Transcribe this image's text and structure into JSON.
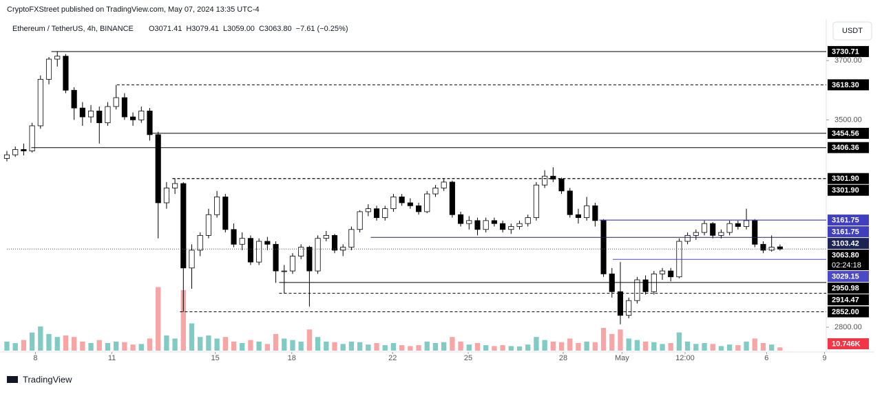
{
  "header": {
    "published": "CryptoFXStreet published on TradingView.com, May 07, 2024 13:35 UTC-4",
    "footer": "TradingView"
  },
  "chart_data": {
    "type": "candlestick",
    "title": "Ethereum / TetherUS, 4h, BINANCE",
    "ohlc_text": [
      "O3071.41",
      "H3079.41",
      "L3059.00",
      "C3063.80",
      "−7.61 (−0.25%)"
    ],
    "currency": "USDT",
    "up_color": "#ffffff",
    "down_color": "#000000",
    "vol_up_color": "#80cbc4",
    "vol_down_color": "#f7a5a5",
    "open": [
      3370,
      3382,
      3400,
      3395,
      3480,
      3637,
      3705,
      3715,
      3600,
      3540,
      3510,
      3530,
      3490,
      3545,
      3575,
      3510,
      3500,
      3530,
      3450,
      3220,
      3270,
      3285,
      3000,
      3060,
      3110,
      3180,
      3240,
      3130,
      3080,
      3100,
      3020,
      3090,
      3080,
      2990,
      2990,
      3040,
      3070,
      2990,
      3100,
      3110,
      3060,
      3070,
      3130,
      3190,
      3200,
      3170,
      3200,
      3240,
      3220,
      3210,
      3190,
      3250,
      3270,
      3290,
      3180,
      3150,
      3160,
      3130,
      3160,
      3150,
      3130,
      3140,
      3150,
      3170,
      3280,
      3310,
      3300,
      3260,
      3180,
      3170,
      3210,
      3160,
      2980,
      2920,
      2840,
      2890,
      2960,
      2920,
      2980,
      2990,
      2970,
      3090,
      3110,
      3120,
      3150,
      3110,
      3120,
      3150,
      3140,
      3160,
      3080,
      3060,
      3071.41
    ],
    "high": [
      3395,
      3410,
      3420,
      3490,
      3650,
      3712,
      3731,
      3722,
      3610,
      3560,
      3550,
      3545,
      3560,
      3618,
      3590,
      3525,
      3545,
      3540,
      3460,
      3290,
      3301,
      3290,
      3080,
      3120,
      3200,
      3260,
      3250,
      3150,
      3120,
      3110,
      3100,
      3105,
      3090,
      3010,
      3050,
      3080,
      3075,
      3110,
      3125,
      3115,
      3080,
      3140,
      3195,
      3215,
      3210,
      3210,
      3250,
      3250,
      3235,
      3220,
      3260,
      3280,
      3300,
      3295,
      3190,
      3175,
      3170,
      3170,
      3170,
      3160,
      3150,
      3160,
      3180,
      3290,
      3330,
      3340,
      3305,
      3270,
      3200,
      3240,
      3220,
      3165,
      3000,
      3020,
      2900,
      2970,
      2975,
      2990,
      3000,
      3000,
      3100,
      3120,
      3130,
      3160,
      3155,
      3130,
      3160,
      3160,
      3200,
      3165,
      3090,
      3110,
      3079.41
    ],
    "low": [
      3360,
      3375,
      3380,
      3390,
      3470,
      3620,
      3680,
      3590,
      3500,
      3480,
      3490,
      3420,
      3480,
      3535,
      3500,
      3480,
      3490,
      3430,
      3100,
      3200,
      3250,
      2852,
      2930,
      3040,
      3100,
      3170,
      3120,
      3070,
      3060,
      3010,
      3010,
      3060,
      2950,
      2914,
      2980,
      3030,
      2870,
      2980,
      3090,
      3050,
      3040,
      3060,
      3120,
      3175,
      3160,
      3160,
      3190,
      3210,
      3200,
      3180,
      3185,
      3240,
      3260,
      3170,
      3140,
      3130,
      3110,
      3120,
      3140,
      3120,
      3115,
      3130,
      3140,
      3160,
      3270,
      3290,
      3250,
      3170,
      3150,
      3160,
      3140,
      2970,
      2900,
      2810,
      2830,
      2880,
      2910,
      2910,
      2960,
      2955,
      2965,
      3080,
      3095,
      3110,
      3100,
      3100,
      3110,
      3130,
      3130,
      3070,
      3050,
      3055,
      3059
    ],
    "close": [
      3382,
      3400,
      3395,
      3480,
      3637,
      3705,
      3715,
      3600,
      3540,
      3510,
      3530,
      3490,
      3545,
      3575,
      3510,
      3500,
      3530,
      3450,
      3220,
      3270,
      3285,
      3000,
      3060,
      3110,
      3180,
      3240,
      3130,
      3080,
      3100,
      3020,
      3090,
      3080,
      2990,
      2990,
      3040,
      3070,
      2990,
      3100,
      3110,
      3060,
      3070,
      3130,
      3190,
      3200,
      3170,
      3200,
      3240,
      3220,
      3210,
      3190,
      3250,
      3270,
      3290,
      3180,
      3150,
      3160,
      3130,
      3160,
      3150,
      3130,
      3140,
      3150,
      3170,
      3280,
      3310,
      3300,
      3260,
      3180,
      3170,
      3210,
      3160,
      2980,
      2920,
      2840,
      2890,
      2960,
      2920,
      2980,
      2990,
      2970,
      3090,
      3110,
      3120,
      3150,
      3110,
      3120,
      3150,
      3140,
      3160,
      3080,
      3060,
      3070,
      3063.8
    ],
    "volume": [
      30,
      25,
      35,
      60,
      80,
      55,
      45,
      50,
      45,
      30,
      25,
      35,
      25,
      30,
      28,
      20,
      22,
      40,
      210,
      50,
      40,
      200,
      90,
      45,
      50,
      40,
      45,
      30,
      25,
      35,
      30,
      22,
      55,
      40,
      35,
      30,
      70,
      45,
      30,
      28,
      22,
      30,
      28,
      20,
      25,
      18,
      25,
      18,
      15,
      18,
      30,
      25,
      28,
      45,
      30,
      20,
      25,
      18,
      15,
      18,
      15,
      14,
      20,
      45,
      35,
      30,
      28,
      40,
      25,
      30,
      28,
      75,
      55,
      70,
      40,
      35,
      30,
      28,
      22,
      25,
      60,
      30,
      22,
      25,
      22,
      15,
      20,
      18,
      30,
      40,
      25,
      20,
      10.746
    ],
    "volume_label": "10.746K",
    "vlim": [
      0,
      250
    ],
    "xlim": [
      0,
      97.5
    ],
    "xticks": [
      {
        "value": 3.4,
        "label": "8"
      },
      {
        "value": 12.5,
        "label": "11"
      },
      {
        "value": 24.8,
        "label": "15"
      },
      {
        "value": 33.9,
        "label": "18"
      },
      {
        "value": 45.9,
        "label": "22"
      },
      {
        "value": 54.9,
        "label": "25"
      },
      {
        "value": 66.2,
        "label": "28"
      },
      {
        "value": 73.2,
        "label": "May"
      },
      {
        "value": 80.7,
        "label": "12:00"
      },
      {
        "value": 90.4,
        "label": "6"
      },
      {
        "value": 97.3,
        "label": "9"
      }
    ],
    "ylim": [
      2721,
      3777
    ],
    "yticks": [
      {
        "value": 3700,
        "label": "3700.00"
      },
      {
        "value": 3500,
        "label": "3500.00"
      },
      {
        "value": 2800,
        "label": "2800.00"
      }
    ],
    "levels": [
      {
        "value": 3730.71,
        "label": "3730.71",
        "from": 5.3,
        "style": "solid",
        "color": "#000000"
      },
      {
        "value": 3618.3,
        "label": "3618.30",
        "from": 13.1,
        "style": "dashed",
        "color": "#000000"
      },
      {
        "value": 3454.56,
        "label": "3454.56",
        "from": 17,
        "style": "solid",
        "color": "#000000"
      },
      {
        "value": 3406.36,
        "label": "3406.36",
        "from": 2.9,
        "style": "solid",
        "color": "#000000"
      },
      {
        "value": 3301.9,
        "label": "3301.90",
        "from": 19.7,
        "style": "dashed",
        "color": "#000000"
      },
      {
        "value": 3301.9,
        "label": "3301.90",
        "from": 19.7,
        "style": "dashed",
        "color": "#000000"
      },
      {
        "value": 3161.75,
        "label": "3161.75",
        "from": 70.5,
        "style": "solid",
        "color": "#3f3fbf"
      },
      {
        "value": 3161.75,
        "label": "3161.75",
        "from": 70.5,
        "style": "solid",
        "color": "#3f3fbf"
      },
      {
        "value": 3103.42,
        "label": "3103.42",
        "from": 43.3,
        "style": "solid",
        "color": "#1c2456"
      },
      {
        "value": 3029.15,
        "label": "3029.15",
        "from": 72.1,
        "style": "solid",
        "color": "#4a4ac4"
      },
      {
        "value": 2950.98,
        "label": "2950.98",
        "from": 32.4,
        "style": "solid",
        "color": "#000000"
      },
      {
        "value": 2914.47,
        "label": "2914.47",
        "from": 32.4,
        "style": "dashed",
        "color": "#000000"
      },
      {
        "value": 2852,
        "label": "2852.00",
        "from": 20.6,
        "style": "dashed",
        "color": "#000000"
      }
    ],
    "current_price": {
      "value": 3063.8,
      "label": "3063.80",
      "countdown": "02:24:18"
    }
  }
}
